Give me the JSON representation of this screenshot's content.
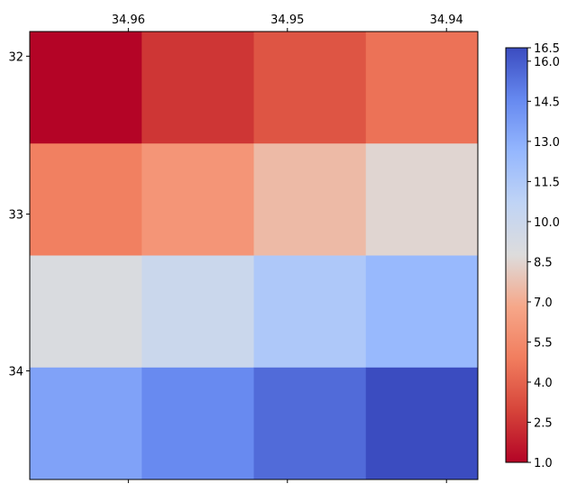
{
  "chart_data": {
    "type": "heatmap",
    "x_tick_labels": [
      "34.96",
      "34.95",
      "34.94"
    ],
    "y_tick_labels": [
      "32",
      "33",
      "34"
    ],
    "colormap": "coolwarm_r",
    "values": [
      [
        1.0,
        2.5,
        3.5,
        4.5
      ],
      [
        5.0,
        6.0,
        7.5,
        8.5
      ],
      [
        9.0,
        10.0,
        11.5,
        12.5
      ],
      [
        13.5,
        14.5,
        15.5,
        16.5
      ]
    ],
    "colorbar": {
      "vmin": 1.0,
      "vmax": 16.5,
      "tick_labels": [
        "1.0",
        "2.5",
        "4.0",
        "5.5",
        "7.0",
        "8.5",
        "10.0",
        "11.5",
        "13.0",
        "14.5",
        "16.0",
        "16.5"
      ]
    },
    "title": "",
    "xlabel": "",
    "ylabel": ""
  }
}
